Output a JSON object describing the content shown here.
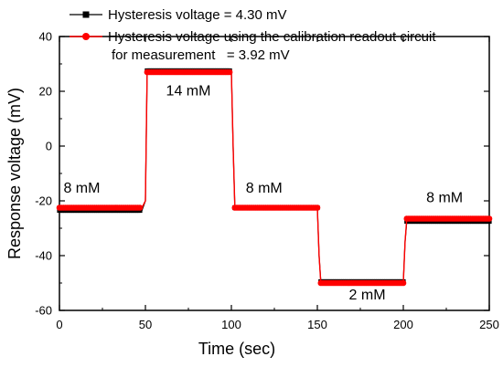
{
  "chart_data": {
    "type": "line",
    "xlabel": "Time (sec)",
    "ylabel": "Response voltage (mV)",
    "xlim": [
      0,
      250
    ],
    "ylim": [
      -60,
      40
    ],
    "x_ticks": [
      0,
      50,
      100,
      150,
      200,
      250
    ],
    "y_ticks": [
      -60,
      -40,
      -20,
      0,
      20,
      40
    ],
    "grid": false,
    "legend_position": "top",
    "series": [
      {
        "name": "Hysteresis voltage = 4.30 mV",
        "color": "#000000",
        "marker": "square",
        "x": [
          0,
          48,
          50,
          51,
          100,
          101,
          102,
          150,
          151,
          152,
          200,
          201,
          202,
          250
        ],
        "y": [
          -23.5,
          -23.5,
          -20,
          27.5,
          27.5,
          0,
          -22.5,
          -22.5,
          -40,
          -49.5,
          -49.5,
          -35,
          -27.5,
          -27.5
        ]
      },
      {
        "name": "Hysteresis voltage using the calibration readout circuit",
        "name_line2": "for measurement   = 3.92 mV",
        "color": "#ff0000",
        "marker": "circle",
        "x": [
          0,
          48,
          50,
          51,
          100,
          101,
          102,
          150,
          151,
          152,
          200,
          201,
          202,
          250
        ],
        "y": [
          -22.5,
          -22.5,
          -20,
          27,
          27,
          0,
          -22.5,
          -22.5,
          -40,
          -50,
          -50,
          -35,
          -26.5,
          -26.5
        ]
      }
    ],
    "annotations": [
      {
        "text": "8 mM",
        "x": 13,
        "y": -17
      },
      {
        "text": "14 mM",
        "x": 75,
        "y": 18.5
      },
      {
        "text": "8 mM",
        "x": 119,
        "y": -17
      },
      {
        "text": "2 mM",
        "x": 179,
        "y": -56
      },
      {
        "text": "8 mM",
        "x": 224,
        "y": -20.5
      }
    ]
  }
}
